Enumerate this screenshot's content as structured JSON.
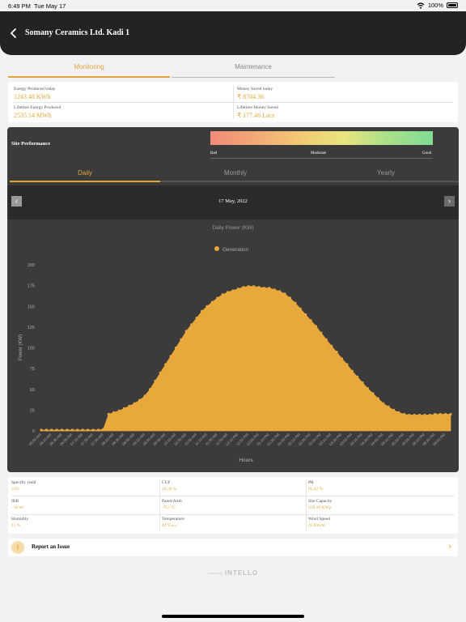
{
  "status_bar": {
    "time": "6:49 PM",
    "date": "Tue May 17",
    "battery": "100%"
  },
  "header": {
    "title": "Somany Ceramics Ltd. Kadi 1"
  },
  "main_tabs": [
    {
      "label": "Monitoring",
      "active": true
    },
    {
      "label": "Maintenance",
      "active": false
    }
  ],
  "energy": {
    "produced_today_label": "Energy Produced today",
    "produced_today_value": "1243.48 KWh",
    "money_saved_today_label": "Money Saved today",
    "money_saved_today_value": "₹ 8704.36",
    "lifetime_produced_label": "Lifetime Energy Produced",
    "lifetime_produced_value": "2535.14 MWh",
    "lifetime_money_label": "Lifetime Money Saved",
    "lifetime_money_value": "₹ 177.46 Lacs"
  },
  "performance": {
    "title": "Site Performance",
    "scale": [
      "Bad",
      "Moderate",
      "Good"
    ],
    "gradient_colors": [
      "#f08a78",
      "#f3c874",
      "#e8e57e",
      "#a9e08a",
      "#7fdc95"
    ]
  },
  "period_tabs": [
    {
      "label": "Daily",
      "active": true
    },
    {
      "label": "Monthly",
      "active": false
    },
    {
      "label": "Yearly",
      "active": false
    }
  ],
  "date_nav": {
    "date": "17 May, 2022",
    "prev_icon": "chevron-left",
    "next_icon": "chevron-right"
  },
  "chart_data": {
    "type": "area",
    "title": "Daily Power (KW)",
    "xlabel": "Hours",
    "ylabel": "Power (KW)",
    "ylim": [
      0,
      200
    ],
    "yticks": [
      0,
      25,
      50,
      75,
      100,
      125,
      150,
      175,
      200
    ],
    "grid": false,
    "legend_position": "top-center",
    "color": "#e8a83c",
    "series": [
      {
        "name": "Generation",
        "x": [
          "05:50 AM",
          "06:00 AM",
          "06:10 AM",
          "06:20 AM",
          "06:30 AM",
          "06:40 AM",
          "06:50 AM",
          "07:00 AM",
          "07:10 AM",
          "07:20 AM",
          "07:30 AM",
          "07:40 AM",
          "07:50 AM",
          "08:00 AM",
          "08:10 AM",
          "08:20 AM",
          "08:30 AM",
          "08:40 AM",
          "08:50 AM",
          "09:00 AM",
          "09:10 AM",
          "09:20 AM",
          "09:30 AM",
          "09:40 AM",
          "09:50 AM",
          "10:00 AM",
          "10:10 AM",
          "10:20 AM",
          "10:30 AM",
          "10:40 AM",
          "10:50 AM",
          "11:00 AM",
          "11:10 AM",
          "11:20 AM",
          "11:30 AM",
          "11:40 AM",
          "11:50 AM",
          "12:00 PM",
          "12:10 PM",
          "12:20 PM",
          "12:30 PM",
          "12:40 PM",
          "12:50 PM",
          "01:00 PM",
          "01:10 PM",
          "01:20 PM",
          "01:30 PM",
          "01:40 PM",
          "01:50 PM",
          "02:00 PM",
          "02:10 PM",
          "02:20 PM",
          "02:30 PM",
          "02:40 PM",
          "02:50 PM",
          "03:00 PM",
          "03:10 PM",
          "03:20 PM",
          "03:30 PM",
          "03:40 PM",
          "03:50 PM",
          "04:00 PM",
          "04:10 PM",
          "04:20 PM",
          "04:30 PM",
          "04:40 PM",
          "04:50 PM",
          "05:00 PM",
          "05:10 PM",
          "05:20 PM",
          "05:30 PM",
          "05:40 PM",
          "05:50 PM",
          "06:00 PM",
          "06:10 PM",
          "06:20 PM",
          "06:30 PM",
          "06:40 PM",
          "06:50 PM",
          "07:00 PM"
        ],
        "values": [
          1,
          1,
          1,
          1,
          1,
          1,
          1,
          1,
          1,
          1,
          1,
          1,
          2,
          20,
          22,
          24,
          27,
          30,
          33,
          37,
          42,
          50,
          60,
          70,
          80,
          90,
          100,
          110,
          120,
          128,
          136,
          144,
          150,
          155,
          160,
          164,
          167,
          169,
          171,
          173,
          174,
          174,
          173,
          172,
          172,
          170,
          168,
          165,
          160,
          154,
          147,
          140,
          133,
          126,
          118,
          110,
          102,
          95,
          87,
          80,
          72,
          65,
          58,
          51,
          45,
          39,
          33,
          29,
          25,
          22,
          20,
          19,
          19,
          19,
          19,
          19,
          20,
          20,
          20,
          20
        ]
      }
    ]
  },
  "metrics": [
    {
      "label": "Specific yield",
      "value": "3.93"
    },
    {
      "label": "CUF",
      "value": "16.39 %"
    },
    {
      "label": "PR",
      "value": "95.42 %"
    },
    {
      "label": "IRR",
      "value": "- W/m²"
    },
    {
      "label": "Panel/Amb",
      "value": "-°C/-°C"
    },
    {
      "label": "Site Capacity",
      "value": "316.16 KWp"
    },
    {
      "label": "Humidity",
      "value": "11 %"
    },
    {
      "label": "Temperature",
      "value": "43°C",
      "note": "Hazy"
    },
    {
      "label": "Wind Speed",
      "value": "23 Km/hr"
    }
  ],
  "report": {
    "label": "Report an Issue",
    "icon": "alert-icon"
  },
  "footer": {
    "powered_by": "powered by",
    "brand": "INTELLO"
  }
}
